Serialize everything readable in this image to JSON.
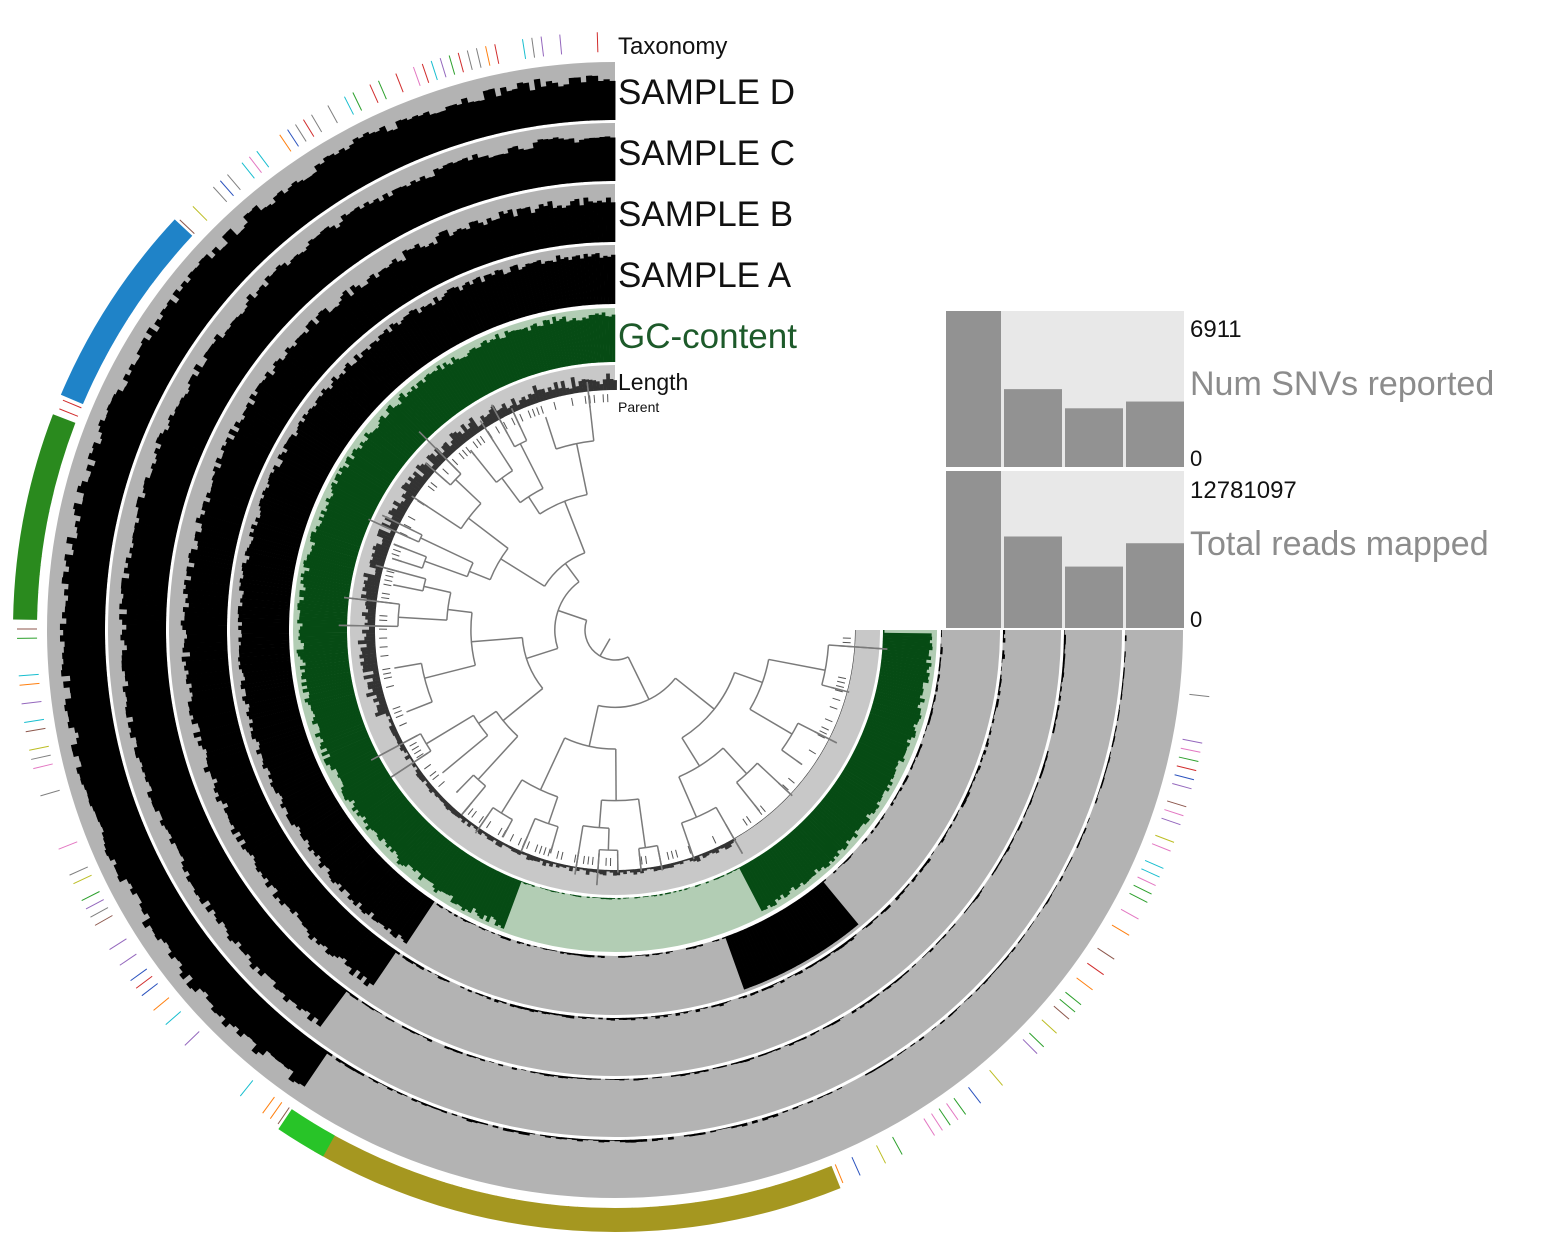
{
  "chart_data": {
    "type": "circular-phylogram",
    "layers": [
      {
        "key": "parent",
        "label": "Parent",
        "kind": "bars",
        "color": "#555555",
        "background": "#ffffff"
      },
      {
        "key": "length",
        "label": "Length",
        "kind": "bars",
        "color": "#333333",
        "background": "#c8c8c8"
      },
      {
        "key": "gc",
        "label": "GC-content",
        "kind": "bars",
        "color": "#064b14",
        "background": "#b2cdb4"
      },
      {
        "key": "sample_a",
        "label": "SAMPLE A",
        "kind": "bars",
        "color": "#000000",
        "background": "#b3b3b3"
      },
      {
        "key": "sample_b",
        "label": "SAMPLE B",
        "kind": "bars",
        "color": "#000000",
        "background": "#b3b3b3"
      },
      {
        "key": "sample_c",
        "label": "SAMPLE C",
        "kind": "bars",
        "color": "#000000",
        "background": "#b3b3b3"
      },
      {
        "key": "sample_d",
        "label": "SAMPLE D",
        "kind": "bars",
        "color": "#000000",
        "background": "#b3b3b3"
      },
      {
        "key": "taxonomy",
        "label": "Taxonomy",
        "kind": "categorical"
      }
    ],
    "taxonomy_blocks": [
      {
        "color": "#1f83c8",
        "from_deg": 293,
        "to_deg": 313
      },
      {
        "color": "#2a8a1e",
        "from_deg": 271,
        "to_deg": 291
      },
      {
        "color": "#a59720",
        "from_deg": 158,
        "to_deg": 210
      },
      {
        "color": "#28c428",
        "from_deg": 209,
        "to_deg": 214
      }
    ],
    "taxonomy_tick_colors": [
      "#d12c2c",
      "#2a52be",
      "#2ca02c",
      "#9467bd",
      "#e377c2",
      "#17becf",
      "#bcbd22",
      "#ff7f0e",
      "#7f7f7f",
      "#8c564b"
    ],
    "bar_series": [
      {
        "name": "Num SNVs reported",
        "max_label": "6911",
        "min_label": "0",
        "ymax": 6911,
        "values": [
          6911,
          3450,
          2600,
          2900
        ]
      },
      {
        "name": "Total reads mapped",
        "max_label": "12781097",
        "min_label": "0",
        "ymax": 12781097,
        "values": [
          12781097,
          7450000,
          5000000,
          6900000
        ]
      }
    ],
    "bar_color": "#929292",
    "bar_panel_background": "#e8e8e8",
    "sample_order": [
      "SAMPLE A",
      "SAMPLE B",
      "SAMPLE C",
      "SAMPLE D"
    ]
  }
}
